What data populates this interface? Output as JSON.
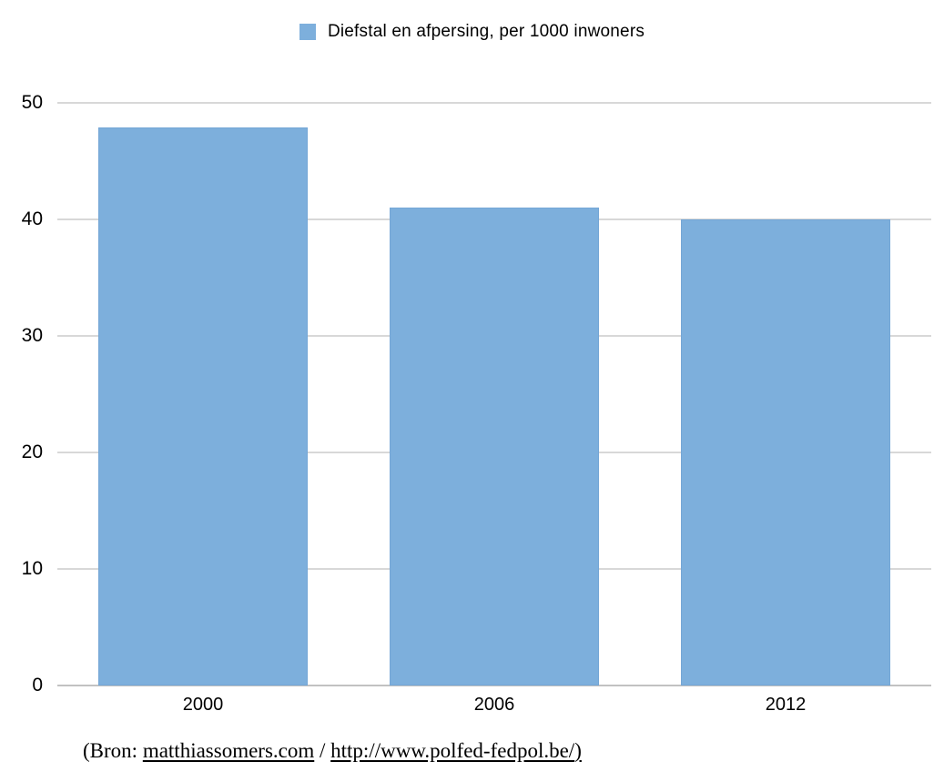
{
  "legend": {
    "label": "Diefstal en afpersing, per 1000 inwoners",
    "swatch_color": "#7dafdc"
  },
  "chart_data": {
    "type": "bar",
    "categories": [
      "2000",
      "2006",
      "2012"
    ],
    "values": [
      47.9,
      41,
      40
    ],
    "title": "Diefstal en afpersing, per 1000 inwoners",
    "xlabel": "",
    "ylabel": "",
    "ylim": [
      0,
      50
    ],
    "yticks": [
      0,
      10,
      20,
      30,
      40,
      50
    ],
    "grid": true,
    "legend_position": "top-center",
    "bar_color": "#7dafdc",
    "bar_border_color": "#74a6d6",
    "gridline_color": "#d8d8d8",
    "baseline_color": "#c2c2c2",
    "text_color": "#000000"
  },
  "source": {
    "prefix": "(Bron: ",
    "link1_label": "matthiassomers.com",
    "separator": " / ",
    "link2_label": "http://www.polfed-fedpol.be/",
    "suffix": ")"
  }
}
